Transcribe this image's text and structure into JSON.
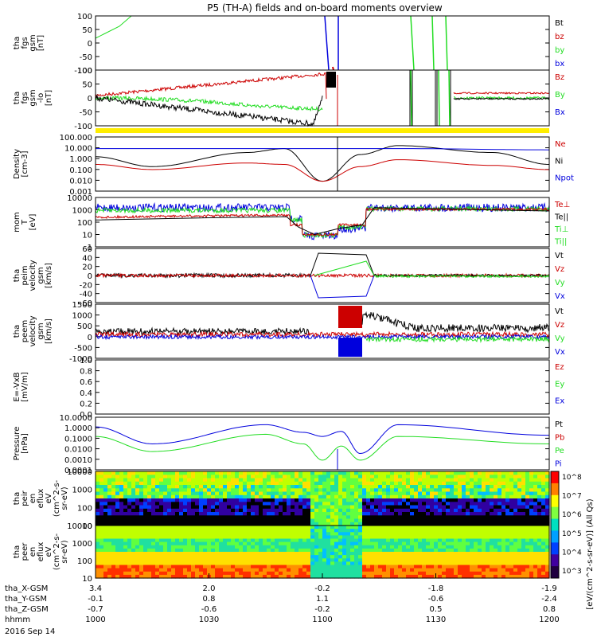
{
  "title": "P5 (TH-A) fields and on-board moments overview",
  "date": "2016 Sep 14",
  "colors": {
    "black": "#000000",
    "red": "#cc0000",
    "green": "#22dd22",
    "blue": "#0000dd",
    "yellow": "#ffee00"
  },
  "panels": [
    {
      "id": "fgs-gsm",
      "ylabel": [
        "tha",
        "fgs",
        "gsm",
        "[nT]"
      ],
      "ticks": [
        "100",
        "50",
        "0",
        "-50",
        "-100"
      ],
      "legend": [
        {
          "text": "Bt",
          "color": "black"
        },
        {
          "text": "bz",
          "color": "red"
        },
        {
          "text": "by",
          "color": "green"
        },
        {
          "text": "bx",
          "color": "blue"
        }
      ]
    },
    {
      "id": "fgs-gsm-lo",
      "ylabel": [
        "tha",
        "fgs",
        "gsm",
        "-lo",
        "[nT]"
      ],
      "ticks": [
        "100",
        "50",
        "0",
        "-50",
        "-100"
      ],
      "legend": [
        {
          "text": "Bz",
          "color": "red"
        },
        {
          "text": "By",
          "color": "green"
        },
        {
          "text": "Bx",
          "color": "blue"
        }
      ]
    },
    {
      "id": "density",
      "ylabel": [
        "Density",
        "[cm-3]"
      ],
      "ticks": [
        "100.000",
        "10.000",
        "1.000",
        "0.100",
        "0.010",
        "0.001"
      ],
      "legend": [
        {
          "text": "Ne",
          "color": "red"
        },
        {
          "text": "Ni",
          "color": "black"
        },
        {
          "text": "Npot",
          "color": "blue"
        }
      ]
    },
    {
      "id": "mom-temp",
      "ylabel": [
        "mom",
        "T",
        "[eV]"
      ],
      "ticks": [
        "10000",
        "1000",
        "100",
        "10",
        "1"
      ],
      "legend": [
        {
          "text": "Te⊥",
          "color": "red"
        },
        {
          "text": "Te||",
          "color": "black"
        },
        {
          "text": "Ti⊥",
          "color": "green"
        },
        {
          "text": "Ti||",
          "color": "green"
        }
      ]
    },
    {
      "id": "peim-velocity",
      "ylabel": [
        "tha",
        "peim",
        "velocity",
        "gsm",
        "[km/s]"
      ],
      "ticks": [
        "60",
        "40",
        "20",
        "0",
        "-20",
        "-40",
        "-60"
      ],
      "legend": [
        {
          "text": "Vt",
          "color": "black"
        },
        {
          "text": "Vz",
          "color": "red"
        },
        {
          "text": "Vy",
          "color": "green"
        },
        {
          "text": "Vx",
          "color": "blue"
        }
      ]
    },
    {
      "id": "peem-velocity",
      "ylabel": [
        "tha",
        "peem",
        "velocity",
        "gsm",
        "[km/s]"
      ],
      "ticks": [
        "1500",
        "1000",
        "500",
        "0",
        "-500",
        "-1000"
      ],
      "legend": [
        {
          "text": "Vt",
          "color": "black"
        },
        {
          "text": "Vz",
          "color": "red"
        },
        {
          "text": "Vy",
          "color": "green"
        },
        {
          "text": "Vx",
          "color": "blue"
        }
      ]
    },
    {
      "id": "efield",
      "ylabel": [
        "E=-VxB",
        "[mV/m]"
      ],
      "ticks": [
        "1.0",
        "0.8",
        "0.6",
        "0.4",
        "0.2",
        "0.0"
      ],
      "legend": [
        {
          "text": "Ez",
          "color": "red"
        },
        {
          "text": "Ey",
          "color": "green"
        },
        {
          "text": "Ex",
          "color": "blue"
        }
      ]
    },
    {
      "id": "pressure",
      "ylabel": [
        "Pressure",
        "[nPa]"
      ],
      "ticks": [
        "10.0000",
        "1.0000",
        "0.1000",
        "0.0100",
        "0.0010",
        "0.0001"
      ],
      "legend": [
        {
          "text": "Pt",
          "color": "black"
        },
        {
          "text": "Pb",
          "color": "red"
        },
        {
          "text": "Pe",
          "color": "green"
        },
        {
          "text": "Pi",
          "color": "blue"
        }
      ]
    },
    {
      "id": "peir-eflux",
      "ylabel": [
        "tha",
        "peir",
        "en",
        "eflux",
        "eV",
        "(cm^2-s-",
        "sr-eV)"
      ],
      "ticks": [
        "10000",
        "1000",
        "100",
        "10"
      ]
    },
    {
      "id": "peer-eflux",
      "ylabel": [
        "tha",
        "peer",
        "en",
        "eflux",
        "eV",
        "(cm^2-s-",
        "sr-eV)"
      ],
      "ticks": [
        "10000",
        "1000",
        "100",
        "10"
      ]
    }
  ],
  "colorbar": {
    "ticks": [
      "10^8",
      "10^7",
      "10^6",
      "10^5",
      "10^4",
      "10^3"
    ],
    "label": "[eV/(cm^2-s-sr-eV)] (All Qs)"
  },
  "xaxis": {
    "rows": [
      {
        "label": "tha_X-GSM",
        "values": [
          "3.4",
          "2.0",
          "-0.2",
          "-1.8",
          "-1.9"
        ]
      },
      {
        "label": "tha_Y-GSM",
        "values": [
          "-0.1",
          "0.8",
          "1.1",
          "-0.6",
          "-2.4"
        ]
      },
      {
        "label": "tha_Z-GSM",
        "values": [
          "-0.7",
          "-0.6",
          "-0.2",
          "0.5",
          "0.8"
        ]
      },
      {
        "label": "hhmm",
        "values": [
          "1000",
          "1030",
          "1100",
          "1130",
          "1200"
        ]
      }
    ]
  },
  "chart_data": {
    "type": "line",
    "title": "P5 (TH-A) fields and on-board moments overview",
    "x_unit": "hhmm",
    "x_range": [
      "1000",
      "1200"
    ],
    "series": [
      {
        "panel": "density",
        "name": "Ni",
        "x": [
          "1000",
          "1015",
          "1040",
          "1050",
          "1100",
          "1110",
          "1120",
          "1145",
          "1200"
        ],
        "values": [
          3,
          0.3,
          8,
          20,
          0.01,
          5,
          40,
          8,
          0.5
        ]
      },
      {
        "panel": "density",
        "name": "Ne",
        "x": [
          "1000",
          "1015",
          "1040",
          "1050",
          "1100",
          "1110",
          "1120",
          "1145",
          "1200"
        ],
        "values": [
          0.5,
          0.15,
          0.7,
          0.5,
          0.01,
          0.3,
          1.5,
          0.4,
          0.15
        ]
      },
      {
        "panel": "density",
        "name": "Npot",
        "x": [
          "1000",
          "1015",
          "1045",
          "1100",
          "1120",
          "1200"
        ],
        "values": [
          20,
          20,
          20,
          20,
          20,
          15
        ]
      },
      {
        "panel": "mom-temp",
        "name": "Ti||",
        "x": [
          "1000",
          "1030",
          "1050",
          "1055",
          "1100",
          "1110",
          "1120",
          "1200"
        ],
        "values": [
          1500,
          700,
          600,
          30,
          8,
          10,
          1500,
          1000
        ]
      },
      {
        "panel": "mom-temp",
        "name": "Te||",
        "x": [
          "1000",
          "1030",
          "1050",
          "1055",
          "1100",
          "1110",
          "1120",
          "1200"
        ],
        "values": [
          200,
          250,
          300,
          30,
          10,
          30,
          1500,
          800
        ]
      },
      {
        "panel": "pressure",
        "name": "Pt",
        "x": [
          "1000",
          "1015",
          "1045",
          "1055",
          "1100",
          "1105",
          "1110",
          "1120",
          "1200"
        ],
        "values": [
          3,
          0.05,
          5,
          0.8,
          0.3,
          1,
          0.005,
          5,
          0.4
        ]
      },
      {
        "panel": "pressure",
        "name": "Pe",
        "x": [
          "1000",
          "1015",
          "1045",
          "1055",
          "1100",
          "1105",
          "1110",
          "1120",
          "1200"
        ],
        "values": [
          0.3,
          0.008,
          0.5,
          0.05,
          0.001,
          0.03,
          0.001,
          0.3,
          0.05
        ]
      }
    ]
  }
}
